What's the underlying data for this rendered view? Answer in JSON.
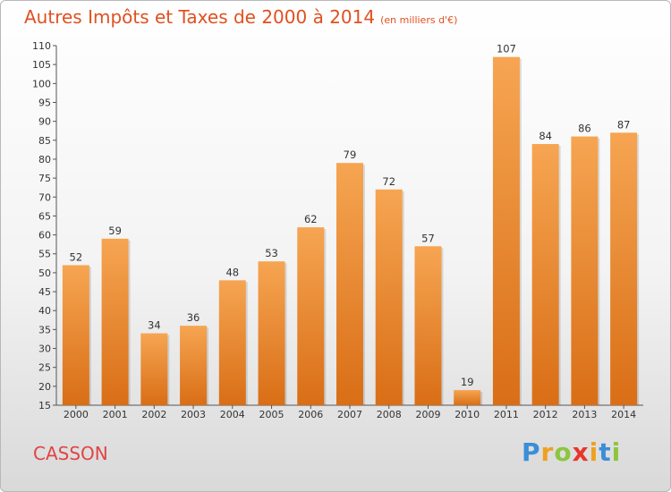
{
  "header": {
    "title": "Autres Impôts et Taxes de 2000 à 2014",
    "unit": "(en milliers d'€)"
  },
  "footer": {
    "commune": "CASSON",
    "logo_text": "Proxiti"
  },
  "colors": {
    "bar_light": "#f6a552",
    "bar_dark": "#d96e16",
    "title": "#e05020",
    "commune": "#e04545"
  },
  "chart_data": {
    "type": "bar",
    "title": "Autres Impôts et Taxes de 2000 à 2014",
    "subtitle": "(en milliers d'€)",
    "xlabel": "",
    "ylabel": "",
    "categories": [
      "2000",
      "2001",
      "2002",
      "2003",
      "2004",
      "2005",
      "2006",
      "2007",
      "2008",
      "2009",
      "2010",
      "2011",
      "2012",
      "2013",
      "2014"
    ],
    "values": [
      52,
      59,
      34,
      36,
      48,
      53,
      62,
      79,
      72,
      57,
      19,
      107,
      84,
      86,
      87
    ],
    "ylim": [
      15,
      110
    ],
    "yticks": [
      15,
      20,
      25,
      30,
      35,
      40,
      45,
      50,
      55,
      60,
      65,
      70,
      75,
      80,
      85,
      90,
      95,
      100,
      105,
      110
    ],
    "grid": false,
    "legend": "none"
  }
}
